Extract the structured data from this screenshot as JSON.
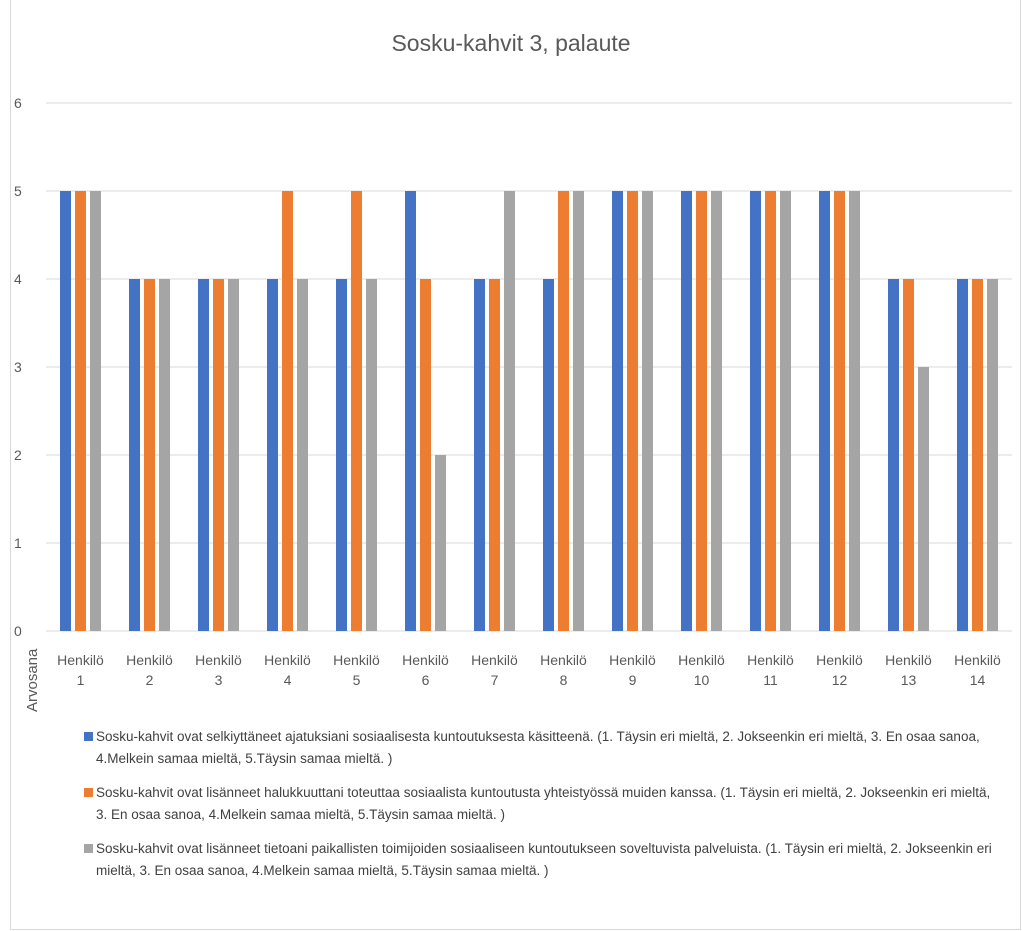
{
  "chart_data": {
    "type": "bar",
    "title": "Sosku-kahvit 3, palaute",
    "ylabel": "Arvosana",
    "xlabel": "",
    "ylim": [
      0,
      6
    ],
    "yticks": [
      0,
      1,
      2,
      3,
      4,
      5,
      6
    ],
    "grid": true,
    "legend_position": "bottom",
    "categories": [
      [
        "Henkilö",
        "1"
      ],
      [
        "Henkilö",
        "2"
      ],
      [
        "Henkilö",
        "3"
      ],
      [
        "Henkilö",
        "4"
      ],
      [
        "Henkilö",
        "5"
      ],
      [
        "Henkilö",
        "6"
      ],
      [
        "Henkilö",
        "7"
      ],
      [
        "Henkilö",
        "8"
      ],
      [
        "Henkilö",
        "9"
      ],
      [
        "Henkilö",
        "10"
      ],
      [
        "Henkilö",
        "11"
      ],
      [
        "Henkilö",
        "12"
      ],
      [
        "Henkilö",
        "13"
      ],
      [
        "Henkilö",
        "14"
      ]
    ],
    "series": [
      {
        "name": "Sosku-kahvit ovat selkiyttäneet ajatuksiani sosiaalisesta kuntoutuksesta käsitteenä. (1. Täysin eri mieltä, 2. Jokseenkin eri mieltä, 3. En osaa sanoa, 4.Melkein samaa mieltä, 5.Täysin samaa mieltä. )",
        "color": "#4472c4",
        "values": [
          5,
          4,
          4,
          4,
          4,
          5,
          4,
          4,
          5,
          5,
          5,
          5,
          4,
          4
        ]
      },
      {
        "name": "Sosku-kahvit ovat lisänneet halukkuuttani toteuttaa sosiaalista kuntoutusta yhteistyössä muiden kanssa.  (1. Täysin eri mieltä, 2. Jokseenkin eri mieltä, 3. En osaa sanoa, 4.Melkein samaa mieltä, 5.Täysin samaa mieltä. )",
        "color": "#ed7d31",
        "values": [
          5,
          4,
          4,
          5,
          5,
          4,
          4,
          5,
          5,
          5,
          5,
          5,
          4,
          4
        ]
      },
      {
        "name": "Sosku-kahvit ovat lisänneet tietoani paikallisten toimijoiden sosiaaliseen kuntoutukseen soveltuvista palveluista. (1. Täysin eri mieltä, 2. Jokseenkin eri mieltä, 3. En osaa sanoa, 4.Melkein samaa mieltä, 5.Täysin samaa mieltä. )",
        "color": "#a5a5a5",
        "values": [
          5,
          4,
          4,
          4,
          4,
          2,
          5,
          5,
          5,
          5,
          5,
          5,
          3,
          4
        ]
      }
    ]
  }
}
